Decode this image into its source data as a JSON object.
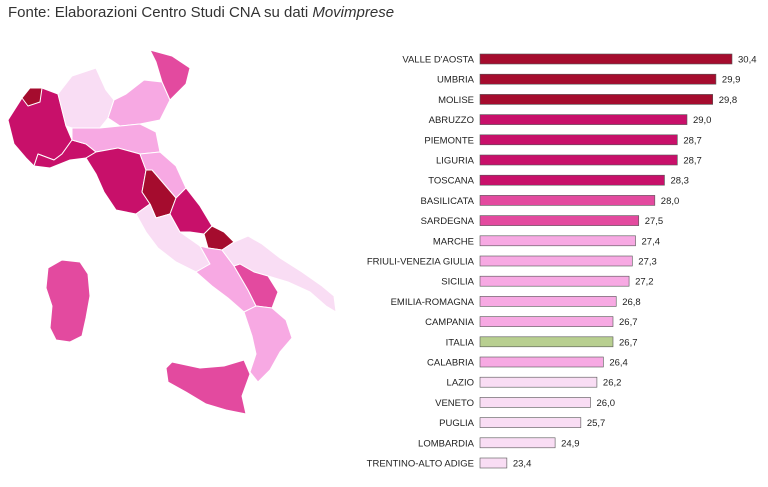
{
  "source_note": {
    "prefix": "Fonte: Elaborazioni Centro Studi CNA su dati",
    "emphasis": "Movimprese"
  },
  "palette": {
    "darkest": "#a50c2e",
    "dark": "#c8106a",
    "mid": "#e34a9f",
    "light": "#f7a9e3",
    "lightest": "#f9ddf4",
    "italia": "#b8cf90",
    "bar_stroke": "#555555"
  },
  "chart_data": {
    "type": "bar",
    "orientation": "horizontal",
    "categories": [
      "VALLE D'AOSTA",
      "UMBRIA",
      "MOLISE",
      "ABRUZZO",
      "PIEMONTE",
      "LIGURIA",
      "TOSCANA",
      "BASILICATA",
      "SARDEGNA",
      "MARCHE",
      "FRIULI-VENEZIA GIULIA",
      "SICILIA",
      "EMILIA-ROMAGNA",
      "CAMPANIA",
      "ITALIA",
      "CALABRIA",
      "LAZIO",
      "VENETO",
      "PUGLIA",
      "LOMBARDIA",
      "TRENTINO-ALTO ADIGE"
    ],
    "values": [
      30.4,
      29.9,
      29.8,
      29.0,
      28.7,
      28.7,
      28.3,
      28.0,
      27.5,
      27.4,
      27.3,
      27.2,
      26.8,
      26.7,
      26.7,
      26.4,
      26.2,
      26.0,
      25.7,
      24.9,
      23.4
    ],
    "value_labels": [
      "30,4",
      "29,9",
      "29,8",
      "29,0",
      "28,7",
      "28,7",
      "28,3",
      "28,0",
      "27,5",
      "27,4",
      "27,3",
      "27,2",
      "26,8",
      "26,7",
      "26,7",
      "26,4",
      "26,2",
      "26,0",
      "25,7",
      "24,9",
      "23,4"
    ],
    "color_class": [
      "darkest",
      "darkest",
      "darkest",
      "dark",
      "dark",
      "dark",
      "dark",
      "mid",
      "mid",
      "light",
      "light",
      "light",
      "light",
      "light",
      "italia",
      "light",
      "lightest",
      "lightest",
      "lightest",
      "lightest",
      "lightest"
    ],
    "xlim": [
      23,
      30.4
    ],
    "grid": false,
    "axes_visible": false
  }
}
